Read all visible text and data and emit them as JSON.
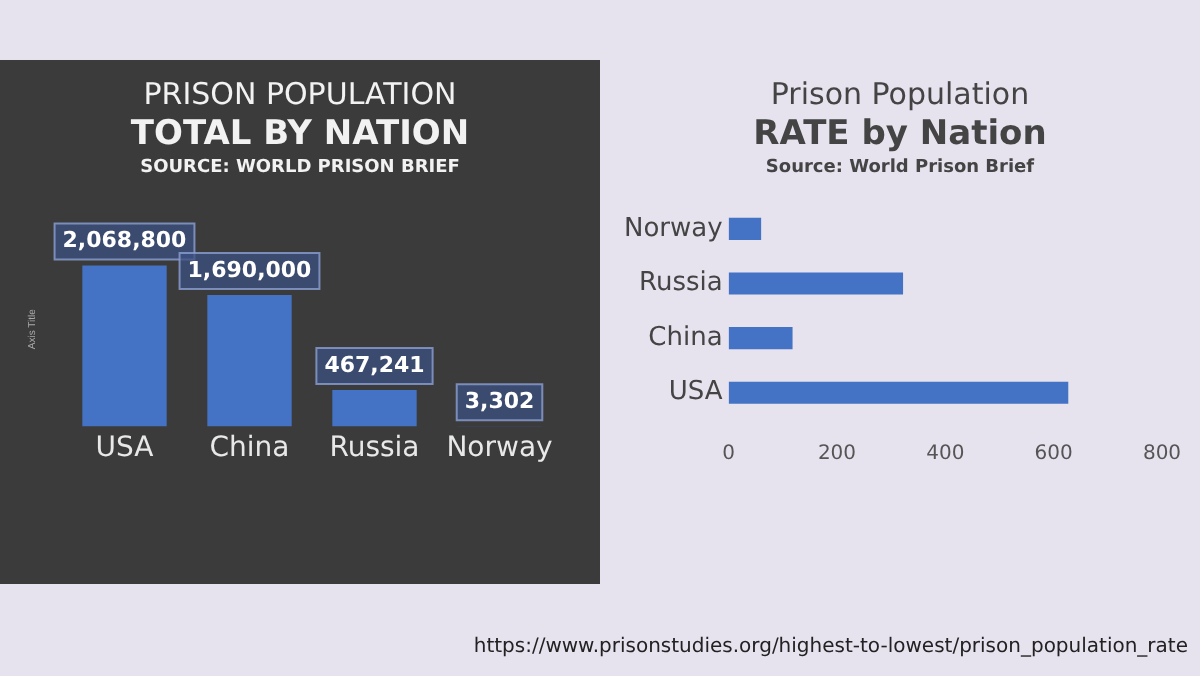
{
  "chart_data": [
    {
      "type": "bar",
      "title": "PRISON POPULATION",
      "subtitle": "TOTAL BY NATION",
      "annotations": [
        "SOURCE: WORLD PRISON BRIEF"
      ],
      "ylabel": "Axis Title",
      "categories": [
        "USA",
        "China",
        "Russia",
        "Norway"
      ],
      "values": [
        2068800,
        1690000,
        467241,
        3302
      ],
      "value_labels": [
        "2,068,800",
        "1,690,000",
        "467,241",
        "3,302"
      ],
      "color": "#4472c4",
      "tick_labels": "x",
      "grid": false,
      "legend": false
    },
    {
      "type": "bar",
      "orientation": "horizontal",
      "title": "Prison Population",
      "subtitle": "RATE by Nation",
      "annotations": [
        "Source: World Prison Brief",
        "https://www.prisonstudies.org/highest-to-lowest/prison_population_rate"
      ],
      "categories": [
        "Norway",
        "Russia",
        "China",
        "USA"
      ],
      "values": [
        60,
        322,
        118,
        627
      ],
      "color": "#4472c4",
      "xlim": [
        0,
        800
      ],
      "xticks": [
        0,
        200,
        400,
        600,
        800
      ],
      "grid": false,
      "legend": false
    }
  ]
}
